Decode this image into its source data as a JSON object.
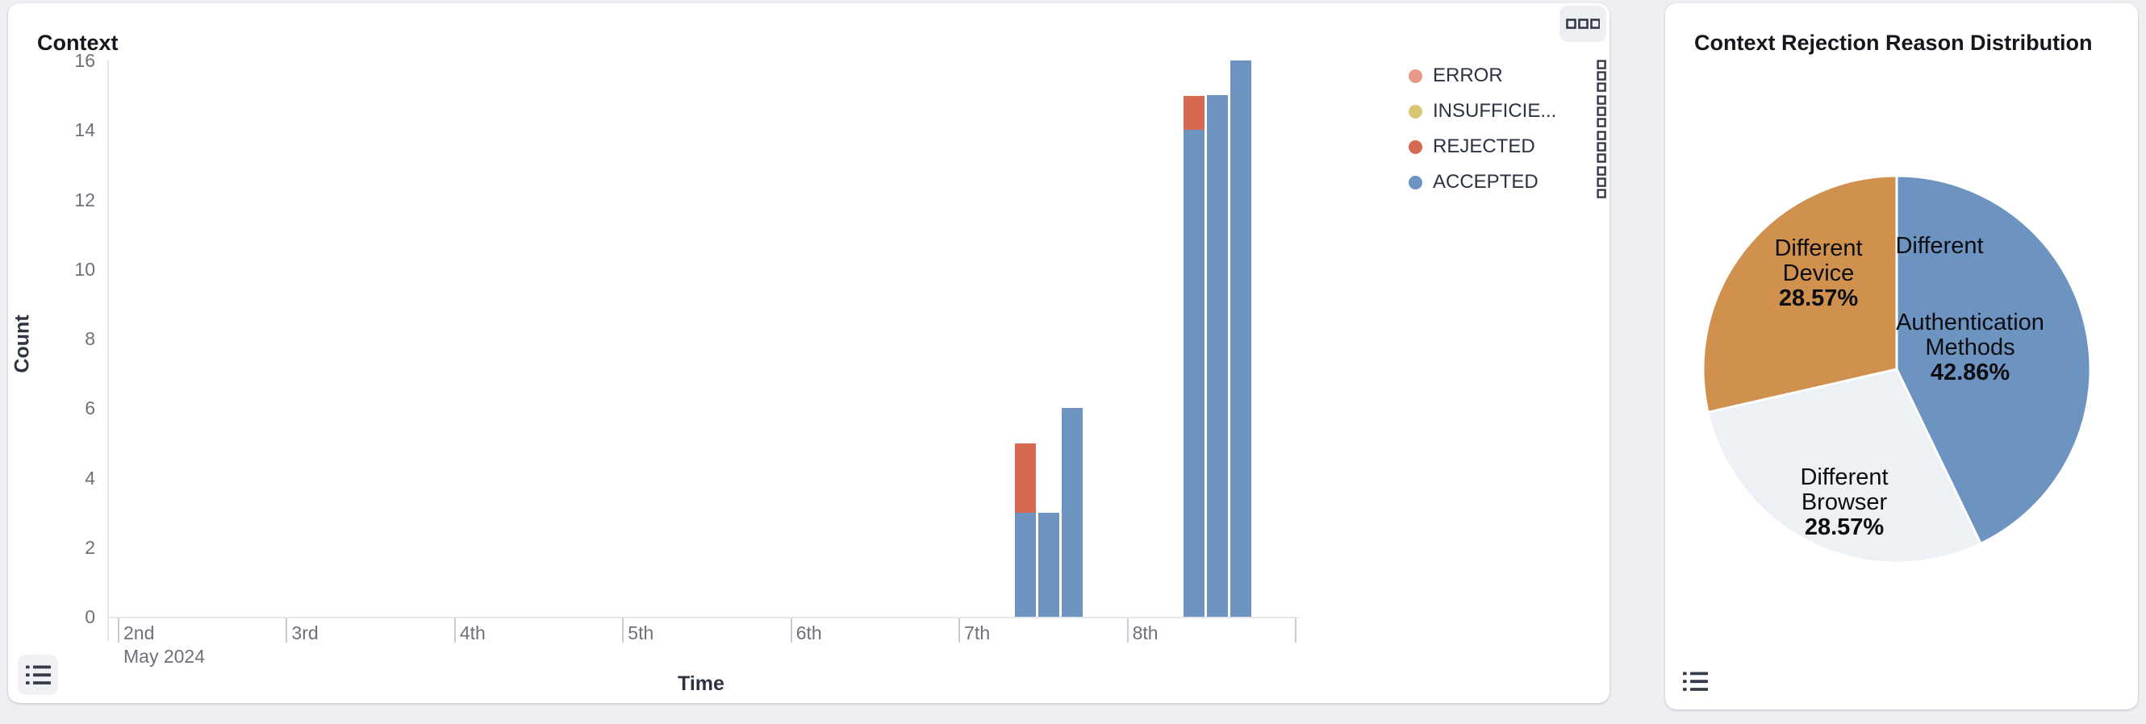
{
  "left_card": {
    "title": "Context",
    "y_axis_label": "Count",
    "x_axis_label": "Time"
  },
  "right_card": {
    "title": "Context Rejection Reason Distribution"
  },
  "legend": {
    "items": [
      {
        "label": "ERROR",
        "color": "#e9998a"
      },
      {
        "label": "INSUFFICIE...",
        "color": "#d9c674"
      },
      {
        "label": "REJECTED",
        "color": "#d56a50"
      },
      {
        "label": "ACCEPTED",
        "color": "#6d93c0"
      }
    ]
  },
  "chart_data": [
    {
      "type": "bar",
      "title": "Context",
      "xlabel": "Time",
      "ylabel": "Count",
      "stacked": true,
      "grid": false,
      "legend_position": "right",
      "ylim": [
        0,
        16
      ],
      "y_ticks": [
        0,
        2,
        4,
        6,
        8,
        10,
        12,
        14,
        16
      ],
      "x_axis": {
        "tick_labels": [
          "2nd",
          "3rd",
          "4th",
          "5th",
          "6th",
          "7th",
          "8th"
        ],
        "first_tick_sub_label": "May 2024",
        "extra_unlabeled_end_tick": true
      },
      "series_colors": {
        "ERROR": "#e9998a",
        "INSUFFICIENT": "#d9c674",
        "REJECTED": "#d56a50",
        "ACCEPTED": "#6d93c0"
      },
      "bars": [
        {
          "day": "7th",
          "slot": 0,
          "segments": [
            {
              "series": "ACCEPTED",
              "value": 3
            },
            {
              "series": "REJECTED",
              "value": 2
            }
          ]
        },
        {
          "day": "7th",
          "slot": 1,
          "segments": [
            {
              "series": "ACCEPTED",
              "value": 3
            }
          ]
        },
        {
          "day": "7th",
          "slot": 2,
          "segments": [
            {
              "series": "ACCEPTED",
              "value": 6
            }
          ]
        },
        {
          "day": "8th",
          "slot": 0,
          "segments": [
            {
              "series": "ACCEPTED",
              "value": 14
            },
            {
              "series": "REJECTED",
              "value": 1
            }
          ]
        },
        {
          "day": "8th",
          "slot": 1,
          "segments": [
            {
              "series": "ACCEPTED",
              "value": 15
            }
          ]
        },
        {
          "day": "8th",
          "slot": 2,
          "segments": [
            {
              "series": "ACCEPTED",
              "value": 16
            }
          ]
        }
      ]
    },
    {
      "type": "pie",
      "title": "Context Rejection Reason Distribution",
      "slices": [
        {
          "label": "Different Authentication Methods",
          "pct": 42.86,
          "pct_label": "42.86%",
          "color": "#6d93c0",
          "display_lines": [
            "Different",
            "Authentication",
            "Methods"
          ]
        },
        {
          "label": "Different Browser",
          "pct": 28.57,
          "pct_label": "28.57%",
          "color": "#edf0f5",
          "display_lines": [
            "Different",
            "Browser"
          ]
        },
        {
          "label": "Different Device",
          "pct": 28.57,
          "pct_label": "28.57%",
          "color": "#d0914f",
          "display_lines": [
            "Different",
            "Device"
          ]
        }
      ]
    }
  ]
}
